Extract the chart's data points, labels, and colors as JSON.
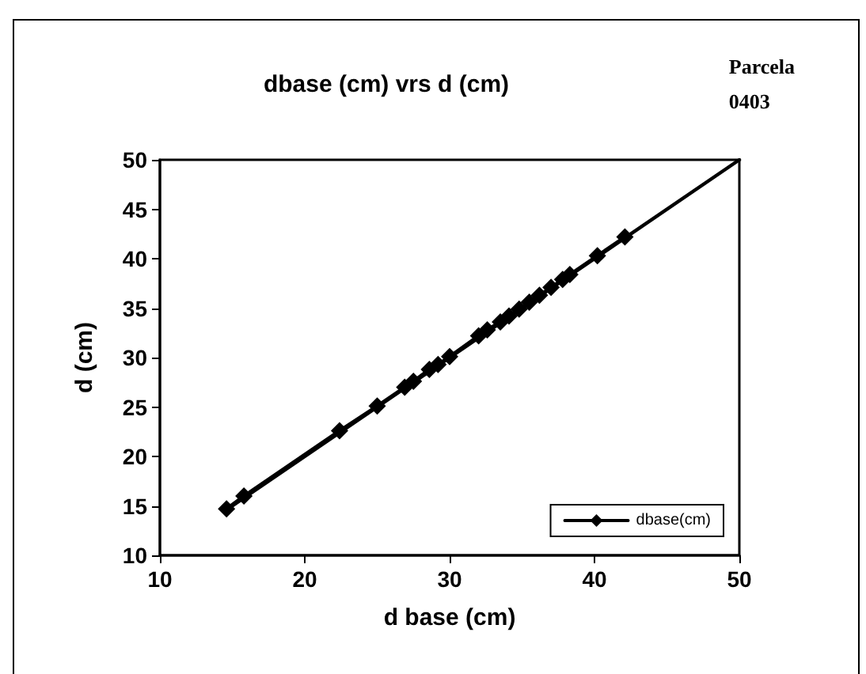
{
  "chart_data": {
    "type": "line",
    "title": "dbase (cm) vrs d (cm)",
    "xlabel": "d base (cm)",
    "ylabel": "d (cm)",
    "annotations": [
      "Parcela\n0403"
    ],
    "series": [
      {
        "name": "dbase(cm)",
        "color": "#000000",
        "marker": "diamond",
        "x": [
          14.6,
          15.8,
          22.4,
          25.0,
          26.9,
          27.5,
          28.6,
          29.2,
          30.0,
          32.0,
          32.6,
          33.5,
          34.1,
          34.8,
          35.5,
          36.2,
          37.0,
          37.8,
          38.3,
          40.2,
          42.1
        ],
        "values": [
          14.7,
          16.0,
          22.6,
          25.1,
          27.0,
          27.6,
          28.8,
          29.3,
          30.1,
          32.2,
          32.8,
          33.6,
          34.2,
          34.9,
          35.6,
          36.3,
          37.1,
          37.9,
          38.4,
          40.3,
          42.2
        ]
      },
      {
        "type": "line",
        "color": "#000000",
        "marker": "none",
        "x": [
          14.6,
          50
        ],
        "values": [
          14.6,
          50
        ]
      }
    ],
    "xlim": [
      10,
      50
    ],
    "xticks": [
      10,
      20,
      30,
      40,
      50
    ],
    "ylim": [
      10,
      50
    ],
    "yticks": [
      10,
      15,
      20,
      25,
      30,
      35,
      40,
      45,
      50
    ],
    "grid": false,
    "legend": "bottom right"
  }
}
